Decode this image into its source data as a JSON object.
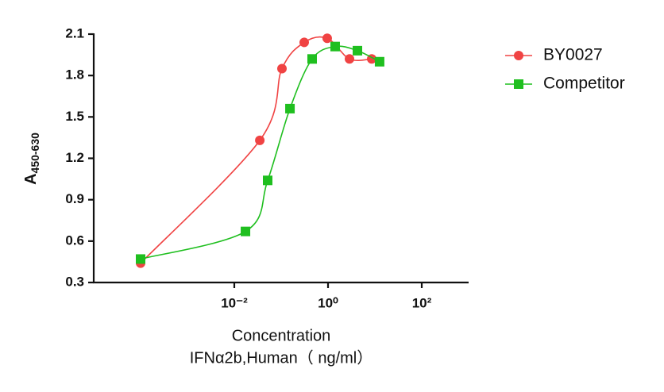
{
  "chart_data": {
    "type": "scatter",
    "ylabel": "A",
    "ylabel_sub": "450-630",
    "xlabel": [
      "Concentration",
      "IFNα2b,Human（ ng/ml）"
    ],
    "xscale": "log",
    "xlim": [
      1e-05,
      1000
    ],
    "xticks": [
      {
        "value": 0.01,
        "label": "10⁻²"
      },
      {
        "value": 1,
        "label": "10⁰"
      },
      {
        "value": 100,
        "label": "10²"
      }
    ],
    "ylim": [
      0.3,
      2.1
    ],
    "yticks": [
      0.3,
      0.6,
      0.9,
      1.2,
      1.5,
      1.8,
      2.1
    ],
    "legend": "right",
    "series": [
      {
        "name": "BY0027",
        "color": "#f04343",
        "marker": "circle",
        "x": [
          0.0001,
          0.035,
          0.104,
          0.31,
          0.96,
          2.87,
          8.56
        ],
        "values": [
          0.44,
          1.33,
          1.85,
          2.04,
          2.07,
          1.92,
          1.92
        ]
      },
      {
        "name": "Competitor",
        "color": "#1fbf1f",
        "marker": "square",
        "x": [
          0.0001,
          0.0173,
          0.0515,
          0.154,
          0.458,
          1.42,
          4.24,
          12.6
        ],
        "values": [
          0.47,
          0.67,
          1.04,
          1.56,
          1.92,
          2.01,
          1.98,
          1.9
        ]
      }
    ]
  }
}
